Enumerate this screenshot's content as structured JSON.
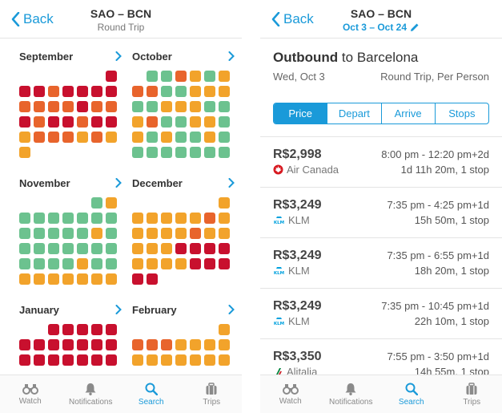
{
  "colors": {
    "accent": "#1a9ad9",
    "red": "#c8102e",
    "orange": "#e8642c",
    "yellow": "#f2a32b",
    "green": "#6cc28f"
  },
  "left": {
    "back_label": "Back",
    "title": "SAO – BCN",
    "subtitle": "Round Trip",
    "months": [
      {
        "name": "September",
        "rows": [
          "______r",
          "rrorrrr",
          "ooooroo",
          "rorrorr",
          "yoooyoy",
          "y______"
        ]
      },
      {
        "name": "October",
        "rows": [
          "_ggoygy",
          "ooggyyy",
          "ggyyygg",
          "yoggyyg",
          "ygyggyg",
          "ggggggg"
        ]
      },
      {
        "name": "November",
        "rows": [
          "_____gy",
          "ggggggg",
          "gggggyg",
          "ggggggg",
          "ggggygg",
          "yyyyyyy"
        ]
      },
      {
        "name": "December",
        "rows": [
          "______y",
          "yyyyyoy",
          "yyyyoyy",
          "yyyrrrr",
          "yyyyrrr",
          "rr_____"
        ]
      },
      {
        "name": "January",
        "rows": [
          "__rrrrrr",
          "rrrrrrr",
          "rrrrrrr"
        ]
      },
      {
        "name": "February",
        "rows": [
          "______yy",
          "oooyyyy",
          "yyyyyyy"
        ]
      }
    ],
    "tabs": [
      {
        "label": "Watch",
        "icon": "binoculars-icon"
      },
      {
        "label": "Notifications",
        "icon": "bell-icon"
      },
      {
        "label": "Search",
        "icon": "search-icon"
      },
      {
        "label": "Trips",
        "icon": "suitcase-icon"
      }
    ]
  },
  "right": {
    "back_label": "Back",
    "title": "SAO – BCN",
    "dates": "Oct 3 – Oct 24",
    "heading_bold": "Outbound",
    "heading_rest": " to Barcelona",
    "date_line": "Wed, Oct 3",
    "trip_type": "Round Trip, Per Person",
    "sort_options": [
      "Price",
      "Depart",
      "Arrive",
      "Stops"
    ],
    "sort_selected": "Price",
    "flights": [
      {
        "price": "R$2,998",
        "airline": "Air Canada",
        "logo": "air-canada-logo",
        "time": "8:00 pm - 12:20 pm+2d",
        "duration": "1d 11h 20m, 1 stop"
      },
      {
        "price": "R$3,249",
        "airline": "KLM",
        "logo": "klm-logo",
        "time": "7:35 pm - 4:25 pm+1d",
        "duration": "15h 50m, 1 stop"
      },
      {
        "price": "R$3,249",
        "airline": "KLM",
        "logo": "klm-logo",
        "time": "7:35 pm - 6:55 pm+1d",
        "duration": "18h 20m, 1 stop"
      },
      {
        "price": "R$3,249",
        "airline": "KLM",
        "logo": "klm-logo",
        "time": "7:35 pm - 10:45 pm+1d",
        "duration": "22h 10m, 1 stop"
      },
      {
        "price": "R$3,350",
        "airline": "Alitalia",
        "logo": "alitalia-logo",
        "time": "7:55 pm - 3:50 pm+1d",
        "duration": "14h 55m, 1 stop"
      }
    ],
    "tabs": [
      {
        "label": "Watch",
        "icon": "binoculars-icon"
      },
      {
        "label": "Notifications",
        "icon": "bell-icon"
      },
      {
        "label": "Search",
        "icon": "search-icon"
      },
      {
        "label": "Trips",
        "icon": "suitcase-icon"
      }
    ]
  }
}
